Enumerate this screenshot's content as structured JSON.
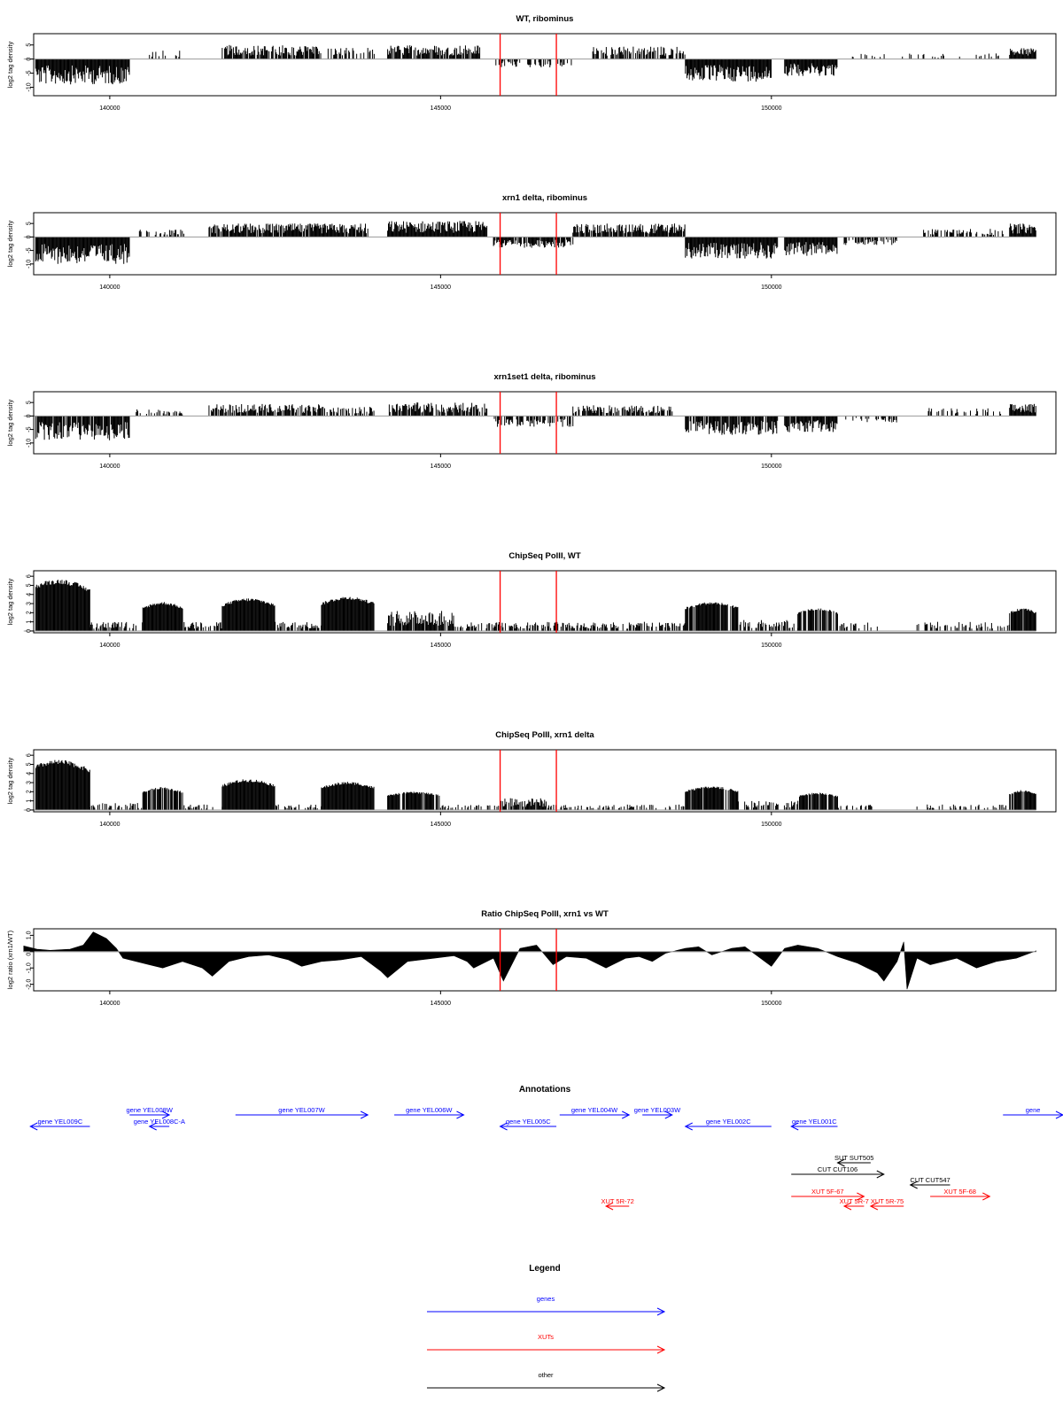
{
  "colors": {
    "genes": "#0000ff",
    "xuts": "#ff0000",
    "other": "#000000",
    "marker": "#ff0000",
    "bars": "#000000"
  },
  "chart_data": {
    "type": "bar",
    "x_ticks": [
      140000,
      145000,
      150000
    ],
    "x_tick_labels": [
      "140000",
      "145000",
      "150000"
    ],
    "xlim": [
      138850,
      154300
    ],
    "marker_lines": [
      145900,
      146750
    ],
    "panels": [
      {
        "title": "WT, ribominus",
        "ylabel": "log2 tag density",
        "ylim": [
          -13,
          9
        ],
        "y_ticks": [
          5,
          0,
          -5,
          -10
        ],
        "y_tick_labels": [
          "5",
          "0",
          "-5",
          "-10"
        ],
        "segments": [
          {
            "x0": 138700,
            "x1": 140300,
            "amp": -9,
            "density": 1
          },
          {
            "x0": 140600,
            "x1": 141100,
            "amp": 3,
            "density": 0.35
          },
          {
            "x0": 141700,
            "x1": 143200,
            "amp": 5,
            "density": 0.8
          },
          {
            "x0": 143300,
            "x1": 144000,
            "amp": 4,
            "density": 0.5
          },
          {
            "x0": 144200,
            "x1": 145600,
            "amp": 5,
            "density": 0.8
          },
          {
            "x0": 145800,
            "x1": 147000,
            "amp": -3,
            "density": 0.45
          },
          {
            "x0": 147300,
            "x1": 148700,
            "amp": 4.5,
            "density": 0.6
          },
          {
            "x0": 148700,
            "x1": 150000,
            "amp": -8,
            "density": 1
          },
          {
            "x0": 150200,
            "x1": 151000,
            "amp": -6,
            "density": 1
          },
          {
            "x0": 151200,
            "x1": 153500,
            "amp": 2,
            "density": 0.12
          },
          {
            "x0": 153600,
            "x1": 154000,
            "amp": 4,
            "density": 1
          }
        ]
      },
      {
        "title": "xrn1 delta, ribominus",
        "ylabel": "log2 tag density",
        "ylim": [
          -14,
          9
        ],
        "y_ticks": [
          5,
          0,
          -5,
          -10
        ],
        "y_tick_labels": [
          "5",
          "0",
          "-5",
          "-10"
        ],
        "segments": [
          {
            "x0": 138700,
            "x1": 140300,
            "amp": -10,
            "density": 1
          },
          {
            "x0": 140400,
            "x1": 141200,
            "amp": 3,
            "density": 0.45
          },
          {
            "x0": 141500,
            "x1": 143900,
            "amp": 5,
            "density": 0.9
          },
          {
            "x0": 144200,
            "x1": 145700,
            "amp": 6,
            "density": 1
          },
          {
            "x0": 145800,
            "x1": 147000,
            "amp": -4,
            "density": 0.8
          },
          {
            "x0": 147000,
            "x1": 148700,
            "amp": 5,
            "density": 0.9
          },
          {
            "x0": 148700,
            "x1": 150100,
            "amp": -8,
            "density": 1
          },
          {
            "x0": 150200,
            "x1": 151000,
            "amp": -7,
            "density": 1
          },
          {
            "x0": 151100,
            "x1": 151900,
            "amp": -3,
            "density": 0.5
          },
          {
            "x0": 152300,
            "x1": 153500,
            "amp": 3,
            "density": 0.4
          },
          {
            "x0": 153600,
            "x1": 154000,
            "amp": 5,
            "density": 1
          }
        ]
      },
      {
        "title": "xrn1set1 delta, ribominus",
        "ylabel": "log2 tag density",
        "ylim": [
          -14,
          9
        ],
        "y_ticks": [
          5,
          0,
          -5,
          -10
        ],
        "y_tick_labels": [
          "5",
          "0",
          "-5",
          "-10"
        ],
        "segments": [
          {
            "x0": 138700,
            "x1": 140300,
            "amp": -9,
            "density": 0.9
          },
          {
            "x0": 140400,
            "x1": 141100,
            "amp": 2.5,
            "density": 0.35
          },
          {
            "x0": 141500,
            "x1": 143200,
            "amp": 4.5,
            "density": 0.75
          },
          {
            "x0": 143200,
            "x1": 144000,
            "amp": 3.5,
            "density": 0.55
          },
          {
            "x0": 144200,
            "x1": 145700,
            "amp": 5,
            "density": 0.85
          },
          {
            "x0": 145800,
            "x1": 147000,
            "amp": -4,
            "density": 0.6
          },
          {
            "x0": 147000,
            "x1": 148500,
            "amp": 4,
            "density": 0.7
          },
          {
            "x0": 148700,
            "x1": 150100,
            "amp": -7,
            "density": 0.9
          },
          {
            "x0": 150200,
            "x1": 151000,
            "amp": -6,
            "density": 0.9
          },
          {
            "x0": 151100,
            "x1": 151900,
            "amp": -2.5,
            "density": 0.35
          },
          {
            "x0": 152300,
            "x1": 153500,
            "amp": 3,
            "density": 0.35
          },
          {
            "x0": 153600,
            "x1": 154000,
            "amp": 4.5,
            "density": 1
          }
        ]
      },
      {
        "title": "ChipSeq PolII, WT",
        "ylabel": "log2 tag density",
        "ylim": [
          -0.2,
          6.6
        ],
        "y_ticks": [
          0,
          1,
          2,
          3,
          4,
          5,
          6
        ],
        "y_tick_labels": [
          "0",
          "1",
          "2",
          "3",
          "4",
          "5",
          "6"
        ],
        "segments": [
          {
            "x0": 138750,
            "x1": 139700,
            "amp": 5.7,
            "density": 1,
            "dome": true
          },
          {
            "x0": 139700,
            "x1": 140500,
            "amp": 1,
            "density": 0.6
          },
          {
            "x0": 140500,
            "x1": 141100,
            "amp": 3.2,
            "density": 1,
            "dome": true
          },
          {
            "x0": 141100,
            "x1": 141700,
            "amp": 1,
            "density": 0.5
          },
          {
            "x0": 141700,
            "x1": 142500,
            "amp": 3.6,
            "density": 1,
            "dome": true
          },
          {
            "x0": 142500,
            "x1": 143200,
            "amp": 1,
            "density": 0.5
          },
          {
            "x0": 143200,
            "x1": 144000,
            "amp": 3.8,
            "density": 1,
            "dome": true
          },
          {
            "x0": 144200,
            "x1": 145200,
            "amp": 2.2,
            "density": 0.8
          },
          {
            "x0": 145200,
            "x1": 148700,
            "amp": 1,
            "density": 0.55
          },
          {
            "x0": 148700,
            "x1": 149500,
            "amp": 3.2,
            "density": 0.9,
            "dome": true
          },
          {
            "x0": 149500,
            "x1": 150400,
            "amp": 1.2,
            "density": 0.6
          },
          {
            "x0": 150400,
            "x1": 151000,
            "amp": 2.5,
            "density": 0.8,
            "dome": true
          },
          {
            "x0": 151000,
            "x1": 151600,
            "amp": 1,
            "density": 0.35
          },
          {
            "x0": 152200,
            "x1": 153600,
            "amp": 1,
            "density": 0.35
          },
          {
            "x0": 153600,
            "x1": 154000,
            "amp": 2.5,
            "density": 0.9,
            "dome": true
          }
        ]
      },
      {
        "title": "ChipSeq PolII, xrn1 delta",
        "ylabel": "log2 tag density",
        "ylim": [
          -0.2,
          6.6
        ],
        "y_ticks": [
          0,
          1,
          2,
          3,
          4,
          5,
          6
        ],
        "y_tick_labels": [
          "0",
          "1",
          "2",
          "3",
          "4",
          "5",
          "6"
        ],
        "segments": [
          {
            "x0": 138750,
            "x1": 139700,
            "amp": 5.5,
            "density": 1,
            "dome": true
          },
          {
            "x0": 139700,
            "x1": 140500,
            "amp": 0.8,
            "density": 0.5
          },
          {
            "x0": 140500,
            "x1": 141100,
            "amp": 2.5,
            "density": 0.9,
            "dome": true
          },
          {
            "x0": 141100,
            "x1": 141700,
            "amp": 0.6,
            "density": 0.4
          },
          {
            "x0": 141700,
            "x1": 142500,
            "amp": 3.4,
            "density": 1,
            "dome": true
          },
          {
            "x0": 142500,
            "x1": 143200,
            "amp": 0.6,
            "density": 0.4
          },
          {
            "x0": 143200,
            "x1": 144000,
            "amp": 3.1,
            "density": 1,
            "dome": true
          },
          {
            "x0": 144200,
            "x1": 145000,
            "amp": 2,
            "density": 0.8,
            "dome": true
          },
          {
            "x0": 145000,
            "x1": 145900,
            "amp": 0.6,
            "density": 0.35
          },
          {
            "x0": 145900,
            "x1": 146600,
            "amp": 1.3,
            "density": 0.8
          },
          {
            "x0": 146600,
            "x1": 148700,
            "amp": 0.6,
            "density": 0.35
          },
          {
            "x0": 148700,
            "x1": 149500,
            "amp": 2.6,
            "density": 0.9,
            "dome": true
          },
          {
            "x0": 149500,
            "x1": 150400,
            "amp": 1,
            "density": 0.5
          },
          {
            "x0": 150400,
            "x1": 151000,
            "amp": 1.9,
            "density": 0.8,
            "dome": true
          },
          {
            "x0": 151000,
            "x1": 151600,
            "amp": 0.6,
            "density": 0.3
          },
          {
            "x0": 152200,
            "x1": 153600,
            "amp": 0.6,
            "density": 0.35
          },
          {
            "x0": 153600,
            "x1": 154000,
            "amp": 2.2,
            "density": 0.9,
            "dome": true
          }
        ]
      },
      {
        "title": "Ratio ChipSeq PolII, xrn1 vs WT",
        "ylabel": "log2 ratio (xrn1/WT)",
        "ylim": [
          -2.4,
          1.4
        ],
        "y_ticks": [
          1.0,
          0.0,
          -1.0,
          -2.0
        ],
        "y_tick_labels": [
          "1.0",
          "0.0",
          "-1.0",
          "-2.0"
        ],
        "profile": [
          [
            138700,
            0.35
          ],
          [
            138900,
            0.15
          ],
          [
            139100,
            0.08
          ],
          [
            139400,
            0.15
          ],
          [
            139600,
            0.4
          ],
          [
            139750,
            1.2
          ],
          [
            139950,
            0.8
          ],
          [
            140100,
            0.2
          ],
          [
            140200,
            -0.4
          ],
          [
            140600,
            -0.8
          ],
          [
            140800,
            -1.0
          ],
          [
            141100,
            -0.6
          ],
          [
            141400,
            -1.0
          ],
          [
            141550,
            -1.5
          ],
          [
            141800,
            -0.6
          ],
          [
            142100,
            -0.3
          ],
          [
            142400,
            -0.2
          ],
          [
            142700,
            -0.5
          ],
          [
            142900,
            -0.9
          ],
          [
            143200,
            -0.6
          ],
          [
            143500,
            -0.5
          ],
          [
            143800,
            -0.3
          ],
          [
            144100,
            -1.2
          ],
          [
            144200,
            -1.6
          ],
          [
            144500,
            -0.6
          ],
          [
            144900,
            -0.4
          ],
          [
            145200,
            -0.25
          ],
          [
            145400,
            -0.6
          ],
          [
            145500,
            -1.0
          ],
          [
            145800,
            -0.4
          ],
          [
            145950,
            -1.8
          ],
          [
            146200,
            0.2
          ],
          [
            146450,
            0.4
          ],
          [
            146700,
            -0.8
          ],
          [
            146900,
            -0.3
          ],
          [
            147200,
            -0.4
          ],
          [
            147500,
            -1.0
          ],
          [
            147800,
            -0.4
          ],
          [
            148000,
            -0.3
          ],
          [
            148200,
            -0.6
          ],
          [
            148400,
            -0.1
          ],
          [
            148700,
            0.2
          ],
          [
            148900,
            0.3
          ],
          [
            149100,
            -0.2
          ],
          [
            149400,
            0.2
          ],
          [
            149600,
            0.3
          ],
          [
            149800,
            -0.3
          ],
          [
            150000,
            -0.9
          ],
          [
            150200,
            0.2
          ],
          [
            150400,
            0.4
          ],
          [
            150700,
            0.2
          ],
          [
            151000,
            -0.3
          ],
          [
            151300,
            -0.7
          ],
          [
            151600,
            -1.3
          ],
          [
            151700,
            -1.8
          ],
          [
            151900,
            -0.6
          ],
          [
            152000,
            0.6
          ],
          [
            152050,
            -2.3
          ],
          [
            152200,
            -0.4
          ],
          [
            152400,
            -0.8
          ],
          [
            152800,
            -0.4
          ],
          [
            153100,
            -1.0
          ],
          [
            153400,
            -0.6
          ],
          [
            153700,
            -0.4
          ],
          [
            154000,
            0.05
          ]
        ]
      }
    ]
  },
  "annotations": {
    "title": "Annotations",
    "features": [
      {
        "label": "gene YEL009C",
        "class": "genes",
        "dir": "left",
        "x0": 138800,
        "x1": 139700,
        "row": 1
      },
      {
        "label": "gene YEL008W",
        "class": "genes",
        "dir": "right",
        "x0": 140300,
        "x1": 140900,
        "row": 0
      },
      {
        "label": "gene YEL008C-A",
        "class": "genes",
        "dir": "left",
        "x0": 140600,
        "x1": 140900,
        "row": 1
      },
      {
        "label": "gene YEL007W",
        "class": "genes",
        "dir": "right",
        "x0": 141900,
        "x1": 143900,
        "row": 0
      },
      {
        "label": "gene YEL006W",
        "class": "genes",
        "dir": "right",
        "x0": 144300,
        "x1": 145350,
        "row": 0
      },
      {
        "label": "gene YEL005C",
        "class": "genes",
        "dir": "left",
        "x0": 145900,
        "x1": 146750,
        "row": 1
      },
      {
        "label": "gene YEL004W",
        "class": "genes",
        "dir": "right",
        "x0": 146800,
        "x1": 147850,
        "row": 0
      },
      {
        "label": "gene YEL003W",
        "class": "genes",
        "dir": "right",
        "x0": 148050,
        "x1": 148500,
        "row": 0
      },
      {
        "label": "gene YEL002C",
        "class": "genes",
        "dir": "left",
        "x0": 148700,
        "x1": 150000,
        "row": 1
      },
      {
        "label": "gene YEL001C",
        "class": "genes",
        "dir": "left",
        "x0": 150300,
        "x1": 151000,
        "row": 1
      },
      {
        "label": "gene",
        "class": "genes",
        "dir": "right",
        "x0": 153500,
        "x1": 155000,
        "row": 0
      },
      {
        "label": "SUT SUT505",
        "class": "other",
        "dir": "left",
        "x0": 151000,
        "x1": 151500,
        "row": 4
      },
      {
        "label": "CUT CUT106",
        "class": "other",
        "dir": "right",
        "x0": 150300,
        "x1": 151700,
        "row": 5
      },
      {
        "label": "CUT CUT547",
        "class": "other",
        "dir": "left",
        "x0": 152100,
        "x1": 152700,
        "row": 6
      },
      {
        "label": "XUT 5F-67",
        "class": "xuts",
        "dir": "right",
        "x0": 150300,
        "x1": 151400,
        "row": 7
      },
      {
        "label": "XUT 5F-68",
        "class": "xuts",
        "dir": "right",
        "x0": 152400,
        "x1": 153300,
        "row": 7
      },
      {
        "label": "XUT 5R-72",
        "class": "xuts",
        "dir": "left",
        "x0": 147500,
        "x1": 147850,
        "row": 8
      },
      {
        "label": "XUT 5R-7",
        "class": "xuts",
        "dir": "left",
        "x0": 151100,
        "x1": 151400,
        "row": 8
      },
      {
        "label": "XUT 5R-75",
        "class": "xuts",
        "dir": "left",
        "x0": 151500,
        "x1": 152000,
        "row": 8
      }
    ]
  },
  "legend": {
    "title": "Legend",
    "items": [
      {
        "label": "genes",
        "class": "genes"
      },
      {
        "label": "XUTs",
        "class": "xuts"
      },
      {
        "label": "other",
        "class": "other"
      }
    ]
  }
}
